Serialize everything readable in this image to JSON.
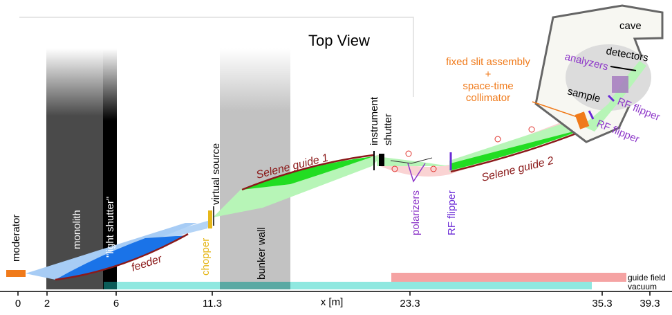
{
  "title": "Top View",
  "labels": {
    "cave": "cave",
    "detectors": "detectors",
    "analyzers": "analyzers",
    "sample": "sample",
    "rf_flipper": "RF flipper",
    "fixed_slit_line1": "fixed slit assembly",
    "fixed_slit_line2": "+",
    "fixed_slit_line3": "space-time",
    "fixed_slit_line4": "collimator",
    "instrument_shutter_line1": "instrument",
    "instrument_shutter_line2": "shutter",
    "selene_guide_1": "Selene guide 1",
    "selene_guide_2": "Selene guide 2",
    "polarizers": "polarizers",
    "virtual_source": "virtual source",
    "chopper": "chopper",
    "bunker_wall": "bunker wall",
    "monolith": "monolith",
    "light_shutter": "\"light shutter\"",
    "moderator": "moderator",
    "feeder": "feeder",
    "guide_field": "guide field",
    "vacuum": "vacuum",
    "x_axis": "x [m]"
  },
  "axis": {
    "ticks": [
      "0",
      "2",
      "6",
      "11.3",
      "23.3",
      "35.3",
      "39.3"
    ]
  },
  "colors": {
    "monolith": "#4a4a4a",
    "light_shutter": "#000000",
    "bunker_wall": "#c2c2c2",
    "guide_green": "#22dd22",
    "beam_green": "#b7f5b7",
    "feeder_blue": "#1a73e8",
    "beam_blue": "#a7ccf5",
    "guide_red": "#8b1a1a",
    "guide_field_pink": "#f5a3a3",
    "vacuum_cyan": "#8fe8e0",
    "orange": "#f07a1a",
    "purple": "#8c35c8",
    "chopper_yellow": "#e6b71a",
    "cave_gray": "#666666"
  }
}
